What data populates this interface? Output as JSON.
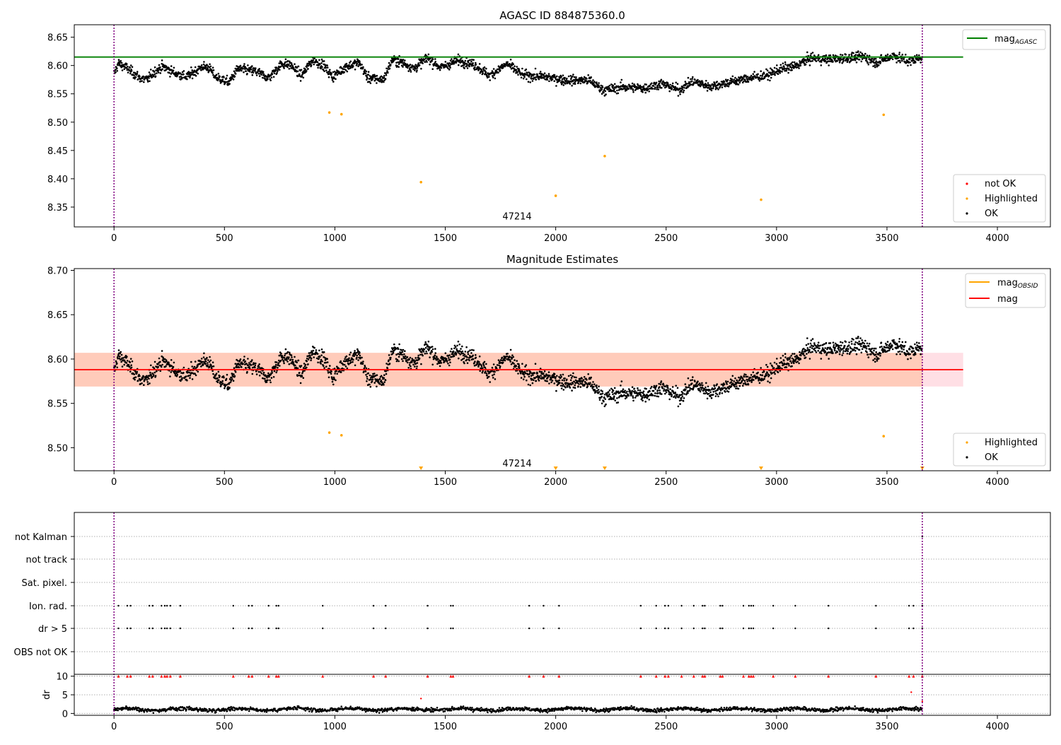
{
  "chart_data": [
    {
      "type": "scatter",
      "title": "AGASC ID 884875360.0",
      "xlim": [
        -180,
        4240
      ],
      "ylim": [
        8.315,
        8.672
      ],
      "xticks": [
        0,
        500,
        1000,
        1500,
        2000,
        2500,
        3000,
        3500,
        4000
      ],
      "yticks": [
        8.35,
        8.4,
        8.45,
        8.5,
        8.55,
        8.6,
        8.65
      ],
      "vlines": [
        0,
        3660
      ],
      "hline": {
        "name": "mag$_{AGASC}$",
        "y": 8.615,
        "x_range": [
          -180,
          3845
        ],
        "color": "#008000"
      },
      "highlighted": [
        [
          975,
          8.517
        ],
        [
          1030,
          8.514
        ],
        [
          1390,
          8.394
        ],
        [
          2000,
          8.37
        ],
        [
          2222,
          8.44
        ],
        [
          2930,
          8.363
        ],
        [
          3485,
          8.513
        ]
      ],
      "annotation": {
        "text": "47214",
        "x": 1825,
        "y": 8.333
      },
      "ok_trend": [
        [
          0,
          8.585
        ],
        [
          20,
          8.604
        ],
        [
          60,
          8.595
        ],
        [
          120,
          8.577
        ],
        [
          150,
          8.575
        ],
        [
          180,
          8.588
        ],
        [
          220,
          8.598
        ],
        [
          280,
          8.586
        ],
        [
          330,
          8.58
        ],
        [
          400,
          8.598
        ],
        [
          430,
          8.596
        ],
        [
          460,
          8.58
        ],
        [
          520,
          8.57
        ],
        [
          560,
          8.594
        ],
        [
          640,
          8.59
        ],
        [
          700,
          8.578
        ],
        [
          760,
          8.603
        ],
        [
          800,
          8.601
        ],
        [
          850,
          8.582
        ],
        [
          900,
          8.61
        ],
        [
          950,
          8.6
        ],
        [
          990,
          8.58
        ],
        [
          1050,
          8.598
        ],
        [
          1110,
          8.605
        ],
        [
          1150,
          8.578
        ],
        [
          1220,
          8.575
        ],
        [
          1260,
          8.61
        ],
        [
          1300,
          8.606
        ],
        [
          1360,
          8.595
        ],
        [
          1420,
          8.614
        ],
        [
          1480,
          8.596
        ],
        [
          1560,
          8.61
        ],
        [
          1640,
          8.6
        ],
        [
          1700,
          8.582
        ],
        [
          1780,
          8.603
        ],
        [
          1850,
          8.583
        ],
        [
          1950,
          8.58
        ],
        [
          2050,
          8.574
        ],
        [
          2150,
          8.574
        ],
        [
          2220,
          8.556
        ],
        [
          2300,
          8.562
        ],
        [
          2400,
          8.56
        ],
        [
          2480,
          8.568
        ],
        [
          2560,
          8.557
        ],
        [
          2620,
          8.572
        ],
        [
          2700,
          8.563
        ],
        [
          2780,
          8.57
        ],
        [
          2880,
          8.578
        ],
        [
          2960,
          8.583
        ],
        [
          3020,
          8.594
        ],
        [
          3080,
          8.598
        ],
        [
          3160,
          8.614
        ],
        [
          3230,
          8.61
        ],
        [
          3300,
          8.613
        ],
        [
          3400,
          8.615
        ],
        [
          3450,
          8.605
        ],
        [
          3530,
          8.618
        ],
        [
          3600,
          8.607
        ],
        [
          3660,
          8.615
        ]
      ],
      "legend": {
        "placement": "lower-right",
        "entries": [
          "not OK",
          "Highlighted",
          "OK"
        ]
      }
    },
    {
      "type": "scatter",
      "title": "Magnitude Estimates",
      "xlim": [
        -180,
        4240
      ],
      "ylim": [
        8.474,
        8.702
      ],
      "xticks": [
        0,
        500,
        1000,
        1500,
        2000,
        2500,
        3000,
        3500,
        4000
      ],
      "yticks": [
        8.5,
        8.55,
        8.6,
        8.65,
        8.7
      ],
      "vlines": [
        0,
        3660
      ],
      "band_pink": {
        "x_range": [
          -180,
          3845
        ],
        "y_range": [
          8.569,
          8.607
        ]
      },
      "band_orange": {
        "x_range": [
          -180,
          3660
        ],
        "y_range": [
          8.569,
          8.607
        ]
      },
      "mag_line": {
        "name": "mag",
        "y": 8.588,
        "x_range": [
          -180,
          3845
        ],
        "color": "#ff0000"
      },
      "highlighted": [
        [
          975,
          8.517
        ],
        [
          1030,
          8.514
        ],
        [
          3485,
          8.513
        ]
      ],
      "markers_bottom": [
        1390,
        2000,
        2222,
        2930,
        3660
      ],
      "annotation": {
        "text": "47214",
        "x": 1825,
        "y": 8.482
      },
      "legend": {
        "placement": "lower-right",
        "entries": [
          "Highlighted",
          "OK"
        ]
      },
      "legend_top": {
        "placement": "top-right",
        "entries": [
          "mag$_{OBSID}$",
          "mag"
        ]
      }
    },
    {
      "type": "scatter",
      "xlim": [
        -180,
        4240
      ],
      "xticks": [
        0,
        500,
        1000,
        1500,
        2000,
        2500,
        3000,
        3500,
        4000
      ],
      "flag_rows": [
        "not Kalman",
        "not track",
        "Sat. pixel.",
        "Ion. rad.",
        "dr > 5",
        "OBS not OK"
      ],
      "flag_events": [
        20,
        60,
        75,
        160,
        175,
        215,
        230,
        240,
        255,
        300,
        540,
        610,
        625,
        700,
        735,
        745,
        945,
        1175,
        1230,
        1420,
        1525,
        1535,
        1880,
        1945,
        2015,
        2385,
        2455,
        2495,
        2510,
        2570,
        2625,
        2665,
        2675,
        2745,
        2755,
        2850,
        2875,
        2885,
        2895,
        2985,
        3085,
        3235,
        3450,
        3600,
        3620,
        3660
      ],
      "dr_ylim": [
        -0.5,
        10.5
      ],
      "dr_yticks": [
        0,
        5,
        10
      ],
      "dr_ylabel": "dr",
      "dr_red": [
        [
          1390,
          4
        ],
        [
          3610,
          5.7
        ],
        [
          3660,
          3.2
        ]
      ],
      "dr_trend_level": 1.1
    }
  ],
  "colors": {
    "ok": "#000000",
    "highlighted": "#ffa500",
    "not_ok": "#ff0000",
    "agasc_line": "#008000",
    "mag_line": "#ff0000",
    "obsid_line": "#ffa500",
    "vline": "#800080"
  }
}
